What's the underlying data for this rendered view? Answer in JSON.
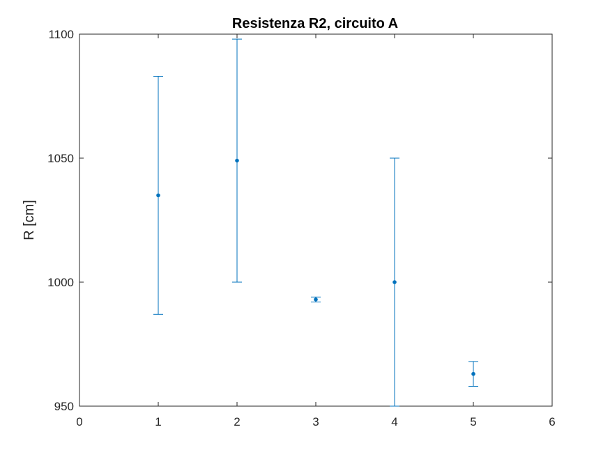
{
  "chart_data": {
    "type": "scatter",
    "title": "Resistenza R2, circuito A",
    "xlabel": "",
    "ylabel": "R [cm]",
    "xlim": [
      0,
      6
    ],
    "ylim": [
      950,
      1100
    ],
    "xticks": [
      "0",
      "1",
      "2",
      "3",
      "4",
      "5",
      "6"
    ],
    "yticks": [
      "950",
      "1000",
      "1050",
      "1100"
    ],
    "grid": false,
    "series": [
      {
        "x": [
          1,
          2,
          3,
          4,
          5
        ],
        "y": [
          1035,
          1049,
          993,
          1000,
          963
        ],
        "err_low": [
          987,
          1000,
          992,
          950,
          958
        ],
        "err_high": [
          1083,
          1098,
          994,
          1050,
          968
        ],
        "color": "#0072BD"
      }
    ]
  }
}
